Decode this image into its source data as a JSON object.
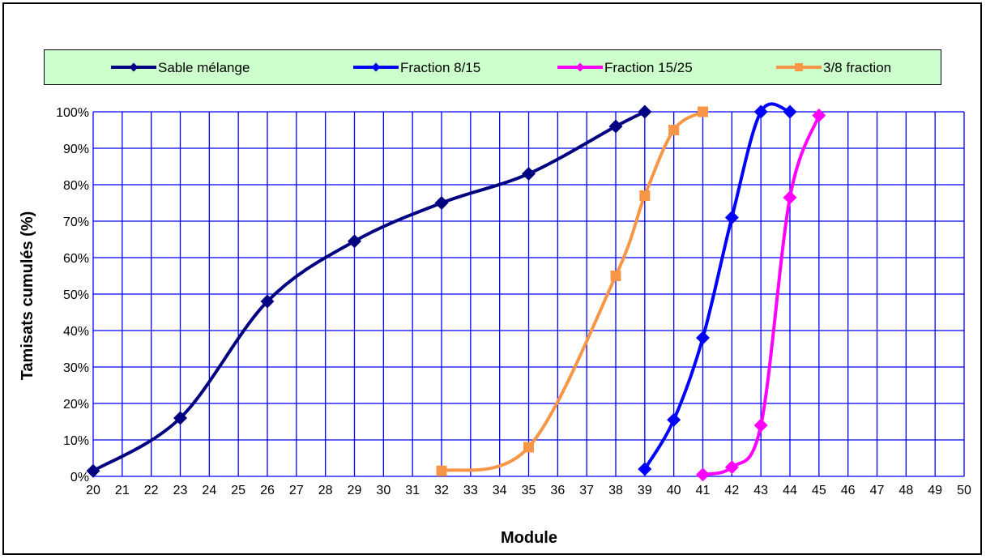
{
  "chart_data": {
    "type": "line",
    "xlabel": "Module",
    "ylabel": "Tamisats cumulés (%)",
    "xlim": [
      20,
      50
    ],
    "ylim": [
      0,
      100
    ],
    "xticks": [
      "20",
      "21",
      "22",
      "23",
      "24",
      "25",
      "26",
      "27",
      "28",
      "29",
      "30",
      "31",
      "32",
      "33",
      "34",
      "35",
      "36",
      "37",
      "38",
      "39",
      "40",
      "41",
      "42",
      "43",
      "44",
      "45",
      "46",
      "47",
      "48",
      "49",
      "50"
    ],
    "yticks": [
      "0%",
      "10%",
      "20%",
      "30%",
      "40%",
      "50%",
      "60%",
      "70%",
      "80%",
      "90%",
      "100%"
    ],
    "grid": true,
    "legend_position": "top",
    "series": [
      {
        "name": "Sable mélange",
        "color": "#000080",
        "marker": "diamond",
        "x": [
          20,
          23,
          26,
          29,
          32,
          35,
          38,
          39
        ],
        "y": [
          1.5,
          16,
          48,
          64.5,
          75,
          83,
          96,
          100
        ]
      },
      {
        "name": "Fraction 8/15",
        "color": "#0000ff",
        "marker": "diamond",
        "x": [
          39,
          40,
          41,
          42,
          43,
          44
        ],
        "y": [
          2,
          15.5,
          38,
          71,
          100,
          100
        ]
      },
      {
        "name": "Fraction 15/25",
        "color": "#ff00ff",
        "marker": "diamond",
        "x": [
          41,
          42,
          43,
          44,
          45
        ],
        "y": [
          0.5,
          2.5,
          14,
          76.5,
          99
        ]
      },
      {
        "name": "3/8 fraction",
        "color": "#f79646",
        "marker": "square",
        "x": [
          32,
          35,
          38,
          39,
          40,
          41
        ],
        "y": [
          1.5,
          8,
          55,
          77,
          95,
          100
        ]
      }
    ]
  },
  "colors": {
    "grid": "#0000ff",
    "legend_background": "#ccffcc"
  }
}
